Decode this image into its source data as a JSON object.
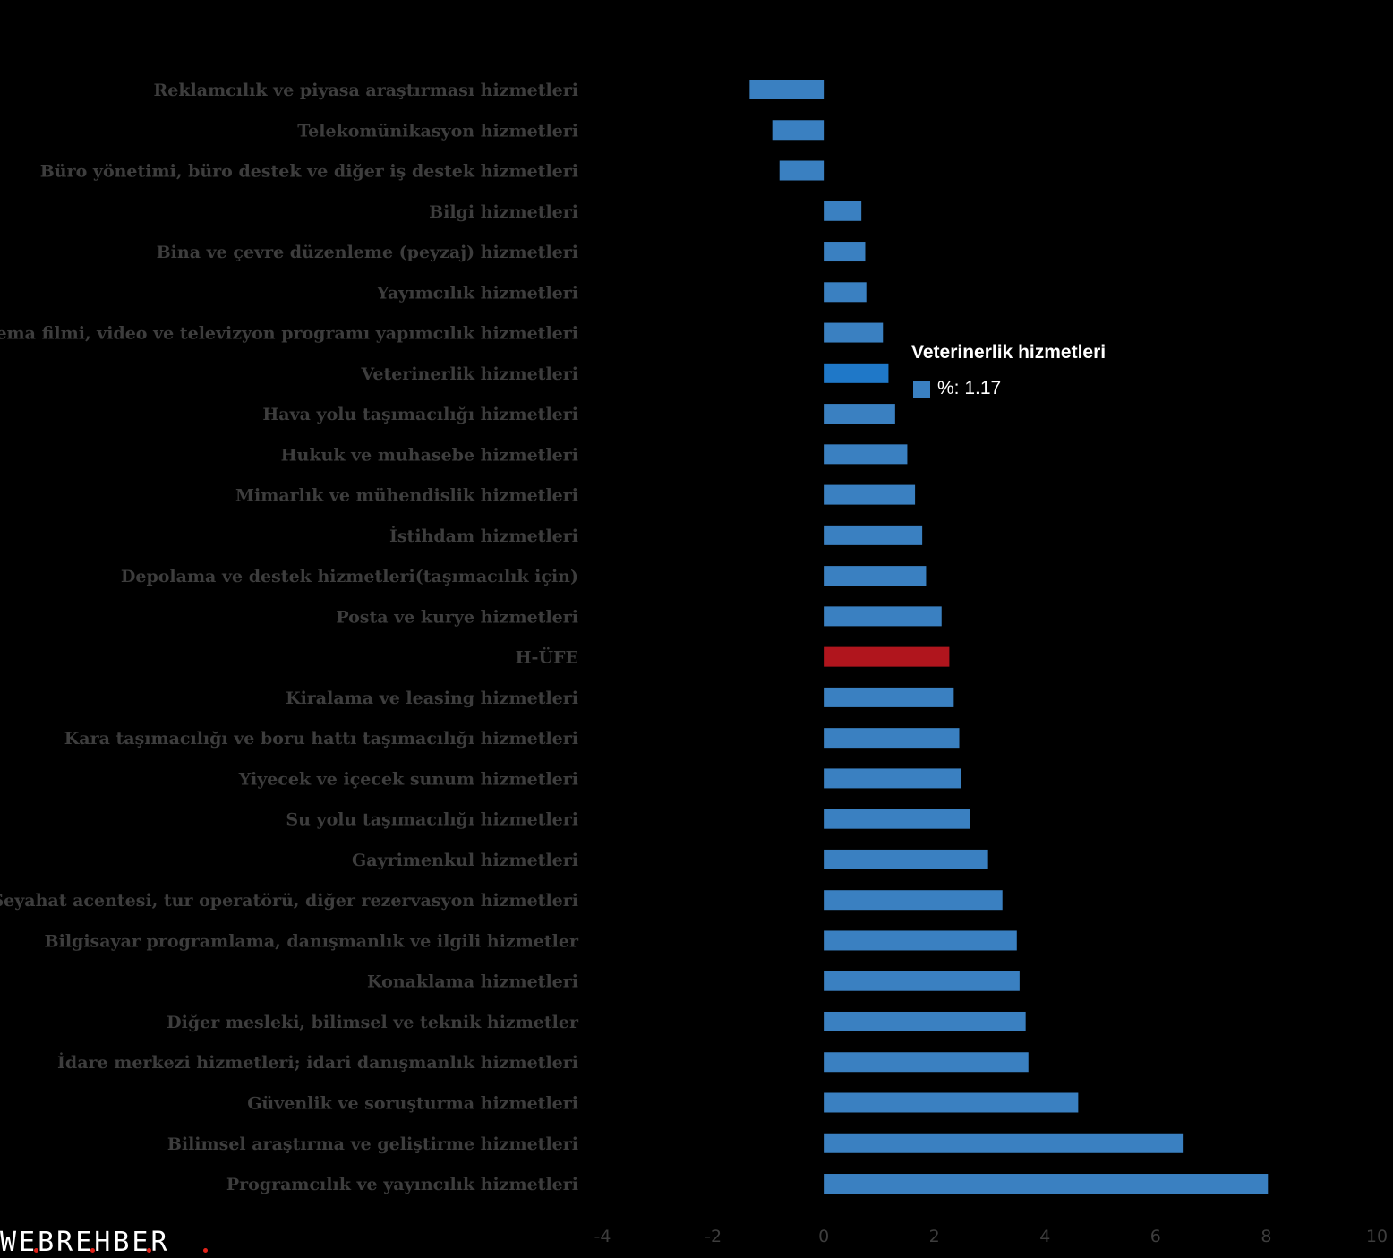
{
  "chart_data": {
    "type": "bar",
    "orientation": "horizontal",
    "categories": [
      "Reklamcılık ve piyasa araştırması hizmetleri",
      "Telekomünikasyon hizmetleri",
      "Büro yönetimi, büro destek ve diğer iş destek hizmetleri",
      "Bilgi hizmetleri",
      "Bina ve çevre düzenleme (peyzaj) hizmetleri",
      "Yayımcılık hizmetleri",
      "Sinema filmi, video ve televizyon programı yapımcılık hizmetleri",
      "Veterinerlik hizmetleri",
      "Hava yolu taşımacılığı hizmetleri",
      "Hukuk ve muhasebe hizmetleri",
      "Mimarlık ve mühendislik hizmetleri",
      "İstihdam hizmetleri",
      "Depolama ve destek hizmetleri(taşımacılık için)",
      "Posta ve kurye hizmetleri",
      "H-ÜFE",
      "Kiralama ve leasing hizmetleri",
      "Kara taşımacılığı ve boru hattı taşımacılığı hizmetleri",
      "Yiyecek ve içecek sunum hizmetleri",
      "Su yolu taşımacılığı hizmetleri",
      "Gayrimenkul hizmetleri",
      "Seyahat acentesi, tur operatörü, diğer rezervasyon hizmetleri",
      "Bilgisayar programlama, danışmanlık ve ilgili hizmetler",
      "Konaklama hizmetleri",
      "Diğer mesleki, bilimsel ve teknik hizmetler",
      "İdare merkezi hizmetleri; idari danışmanlık hizmetleri",
      "Güvenlik ve soruşturma hizmetleri",
      "Bilimsel araştırma ve geliştirme hizmetleri",
      "Programcılık ve yayıncılık hizmetleri"
    ],
    "values": [
      -1.34,
      -0.93,
      -0.8,
      0.68,
      0.75,
      0.77,
      1.07,
      1.17,
      1.29,
      1.51,
      1.65,
      1.78,
      1.85,
      2.13,
      2.27,
      2.35,
      2.45,
      2.48,
      2.64,
      2.97,
      3.23,
      3.49,
      3.54,
      3.65,
      3.7,
      4.6,
      6.49,
      8.03
    ],
    "highlight_category": "H-ÜFE",
    "hovered_category": "Veterinerlik hizmetleri",
    "xlim": [
      -4,
      10
    ],
    "xticks": [
      -4,
      -2,
      0,
      2,
      4,
      6,
      8,
      10
    ],
    "grid": false,
    "legend": "none",
    "title": "",
    "xlabel": "",
    "ylabel": ""
  },
  "colors": {
    "background": "#000000",
    "bar": "#3a80c1",
    "bar_hovered": "#1f78c8",
    "bar_highlight": "#b0151d",
    "label_text": "#3d3d3d",
    "tooltip_text": "#ffffff",
    "logo_dot": "#e2231a"
  },
  "tooltip": {
    "title": "Veterinerlik hizmetleri",
    "value_text": "%: 1.17"
  },
  "logo": {
    "text": "WEBREHBER"
  }
}
